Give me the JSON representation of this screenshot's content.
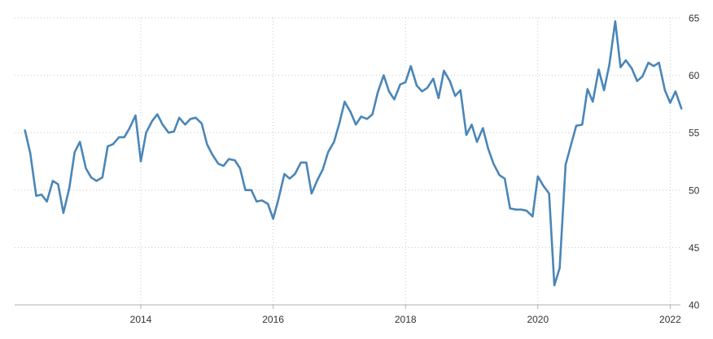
{
  "chart_data": {
    "type": "line",
    "title": "",
    "xlabel": "",
    "ylabel": "",
    "xlim": [
      2012.25,
      2022.2
    ],
    "ylim": [
      40,
      65
    ],
    "grid": true,
    "y_axis_position": "right",
    "x_ticks": [
      2014,
      2016,
      2018,
      2020,
      2022
    ],
    "x_tick_labels": [
      "2014",
      "2016",
      "2018",
      "2020",
      "2022"
    ],
    "y_ticks": [
      40,
      45,
      50,
      55,
      60,
      65
    ],
    "y_tick_labels": [
      "40",
      "45",
      "50",
      "55",
      "60",
      "65"
    ],
    "colors": {
      "series": "#4a86b8",
      "grid": "#c8c8c8",
      "text": "#333333"
    },
    "series": [
      {
        "x": [
          2012.25,
          2012.33,
          2012.42,
          2012.5,
          2012.58,
          2012.67,
          2012.75,
          2012.83,
          2012.92,
          2013.0,
          2013.08,
          2013.17,
          2013.25,
          2013.33,
          2013.42,
          2013.5,
          2013.58,
          2013.67,
          2013.75,
          2013.83,
          2013.92,
          2014.0,
          2014.08,
          2014.17,
          2014.25,
          2014.33,
          2014.42,
          2014.5,
          2014.58,
          2014.67,
          2014.75,
          2014.83,
          2014.92,
          2015.0,
          2015.08,
          2015.17,
          2015.25,
          2015.33,
          2015.42,
          2015.5,
          2015.58,
          2015.67,
          2015.75,
          2015.83,
          2015.92,
          2016.0,
          2016.08,
          2016.17,
          2016.25,
          2016.33,
          2016.42,
          2016.5,
          2016.58,
          2016.67,
          2016.75,
          2016.83,
          2016.92,
          2017.0,
          2017.08,
          2017.17,
          2017.25,
          2017.33,
          2017.42,
          2017.5,
          2017.58,
          2017.67,
          2017.75,
          2017.83,
          2017.92,
          2018.0,
          2018.08,
          2018.17,
          2018.25,
          2018.33,
          2018.42,
          2018.5,
          2018.58,
          2018.67,
          2018.75,
          2018.83,
          2018.92,
          2019.0,
          2019.08,
          2019.17,
          2019.25,
          2019.33,
          2019.42,
          2019.5,
          2019.58,
          2019.67,
          2019.75,
          2019.83,
          2019.92,
          2020.0,
          2020.08,
          2020.17,
          2020.25,
          2020.33,
          2020.42,
          2020.5,
          2020.58,
          2020.67,
          2020.75,
          2020.83,
          2020.92,
          2021.0,
          2021.08,
          2021.17,
          2021.25,
          2021.33,
          2021.42,
          2021.5,
          2021.58,
          2021.67,
          2021.75,
          2021.83,
          2021.92,
          2022.0,
          2022.08,
          2022.17
        ],
        "values": [
          55.2,
          53.2,
          49.5,
          49.6,
          49.0,
          50.8,
          50.5,
          48.0,
          50.2,
          53.3,
          54.2,
          51.9,
          51.1,
          50.8,
          51.1,
          53.8,
          54.0,
          54.6,
          54.6,
          55.4,
          56.5,
          52.5,
          55.0,
          56.0,
          56.6,
          55.7,
          55.0,
          55.1,
          56.3,
          55.7,
          56.2,
          56.3,
          55.8,
          54.0,
          53.1,
          52.3,
          52.1,
          52.7,
          52.6,
          51.9,
          50.0,
          50.0,
          49.0,
          49.1,
          48.8,
          47.5,
          49.2,
          51.4,
          51.0,
          51.4,
          52.4,
          52.4,
          49.7,
          50.9,
          51.8,
          53.3,
          54.2,
          55.8,
          57.7,
          56.8,
          55.7,
          56.4,
          56.2,
          56.6,
          58.5,
          60.0,
          58.6,
          57.9,
          59.2,
          59.4,
          60.8,
          59.1,
          58.6,
          58.9,
          59.7,
          58.0,
          60.4,
          59.5,
          58.2,
          58.7,
          54.8,
          55.7,
          54.2,
          55.4,
          53.6,
          52.3,
          51.3,
          51.0,
          48.4,
          48.3,
          48.3,
          48.2,
          47.7,
          51.2,
          50.4,
          49.7,
          41.7,
          43.2,
          52.2,
          53.9,
          55.6,
          55.7,
          58.8,
          57.7,
          60.5,
          58.7,
          60.9,
          64.7,
          60.7,
          61.3,
          60.6,
          59.5,
          59.9,
          61.1,
          60.8,
          61.1,
          58.7,
          57.6,
          58.6,
          57.1
        ]
      }
    ]
  }
}
